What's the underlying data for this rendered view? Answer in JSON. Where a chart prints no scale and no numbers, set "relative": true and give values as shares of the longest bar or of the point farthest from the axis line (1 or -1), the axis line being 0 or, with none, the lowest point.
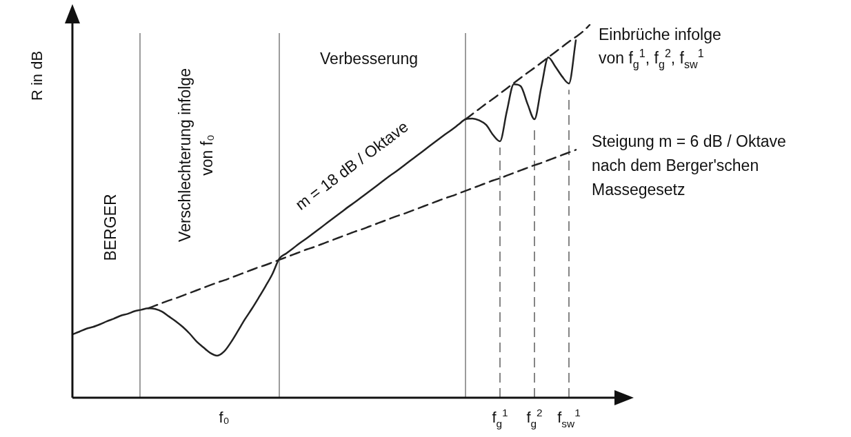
{
  "chart_data": {
    "type": "line",
    "relative": true,
    "ylabel": "R in dB",
    "categories": [
      null,
      null,
      null,
      null,
      null,
      null,
      null,
      null,
      null,
      null,
      null,
      null,
      null,
      null,
      null,
      null,
      null,
      null,
      null,
      null,
      null,
      null,
      "f₀",
      null,
      null,
      null,
      null,
      null,
      null,
      null,
      null,
      null,
      null,
      null,
      null,
      null,
      null,
      null,
      null,
      null,
      null,
      null,
      null,
      null,
      null,
      null,
      null,
      null,
      null,
      null,
      null,
      null,
      null,
      null,
      null,
      null,
      null,
      null,
      null,
      null,
      null,
      null,
      "f$_{g}$$^{1}$",
      null,
      null,
      null,
      null,
      "f$_{g}$$^{2}$",
      null,
      null,
      null,
      null,
      "f$_{sw}$$^{1}$",
      null,
      null,
      null,
      null,
      null,
      null,
      null,
      null
    ],
    "tick_labels": "x",
    "grid": "x",
    "legend": false,
    "marker": "none",
    "series": [
      {
        "color": "#222222",
        "line_style": "solid",
        "values": [
          0.17,
          0.177,
          0.185,
          0.19,
          0.197,
          0.205,
          0.212,
          0.22,
          0.225,
          0.232,
          0.236,
          0.24,
          0.238,
          0.231,
          0.218,
          0.205,
          0.19,
          0.172,
          0.151,
          0.135,
          0.12,
          0.113,
          0.124,
          0.149,
          0.179,
          0.21,
          0.238,
          0.268,
          0.299,
          0.332,
          0.373,
          0.387,
          0.401,
          0.415,
          0.428,
          0.442,
          0.456,
          0.47,
          0.484,
          0.498,
          0.512,
          0.525,
          0.539,
          0.553,
          0.567,
          0.581,
          0.595,
          0.608,
          0.622,
          0.636,
          0.65,
          0.664,
          0.678,
          0.692,
          0.706,
          0.719,
          0.733,
          0.747,
          0.749,
          0.744,
          0.732,
          0.705,
          0.688,
          0.769,
          0.841,
          0.836,
          0.788,
          0.747,
          0.834,
          0.913,
          0.889,
          0.862,
          0.843,
          0.959,
          null,
          null,
          null,
          null,
          null,
          null,
          null
        ]
      },
      {
        "color": "#222222",
        "line_style": "dashed",
        "values": [
          null,
          null,
          null,
          null,
          null,
          null,
          null,
          null,
          null,
          null,
          null,
          null,
          null,
          null,
          null,
          null,
          null,
          null,
          null,
          null,
          null,
          null,
          null,
          null,
          null,
          null,
          null,
          null,
          null,
          null,
          null,
          null,
          null,
          null,
          null,
          null,
          null,
          null,
          null,
          null,
          null,
          null,
          null,
          null,
          null,
          null,
          null,
          null,
          null,
          null,
          null,
          null,
          null,
          null,
          null,
          null,
          null,
          0.747,
          0.761,
          0.775,
          0.789,
          0.802,
          0.816,
          0.83,
          0.844,
          0.858,
          0.872,
          0.885,
          0.899,
          0.913,
          0.927,
          0.941,
          0.955,
          0.968,
          0.982,
          1,
          null,
          null,
          null,
          null,
          null
        ]
      },
      {
        "color": "#222222",
        "line_style": "dashed",
        "values": [
          null,
          null,
          null,
          null,
          null,
          null,
          null,
          null,
          null,
          null,
          null,
          0.24,
          0.247,
          0.254,
          0.261,
          0.267,
          0.274,
          0.281,
          0.288,
          0.295,
          0.302,
          0.309,
          0.315,
          0.322,
          0.329,
          0.336,
          0.343,
          0.35,
          0.356,
          0.363,
          0.37,
          0.377,
          0.384,
          0.391,
          0.398,
          0.404,
          0.411,
          0.418,
          0.425,
          0.432,
          0.439,
          0.446,
          0.452,
          0.459,
          0.466,
          0.473,
          0.48,
          0.487,
          0.493,
          0.5,
          0.507,
          0.514,
          0.521,
          0.528,
          0.535,
          0.541,
          0.548,
          0.555,
          0.562,
          0.569,
          0.576,
          0.583,
          0.589,
          0.596,
          0.603,
          0.61,
          0.617,
          0.624,
          0.63,
          0.637,
          0.644,
          0.651,
          0.658,
          0.665,
          null,
          null,
          null,
          null,
          null,
          null,
          null
        ]
      }
    ],
    "annotations": [
      "BERGER",
      "Verschlechterung infolge",
      "von f₀",
      "Verbesserung",
      "m = 18 dB / Oktave",
      "Einbrüche infolge",
      "von f$_{g}$$^{1}$, f$_{g}$$^{2}$, f$_{sw}$$^{1}$",
      "Steigung m = 6 dB / Oktave",
      "nach dem Berger'schen",
      "Massegesetz"
    ]
  }
}
